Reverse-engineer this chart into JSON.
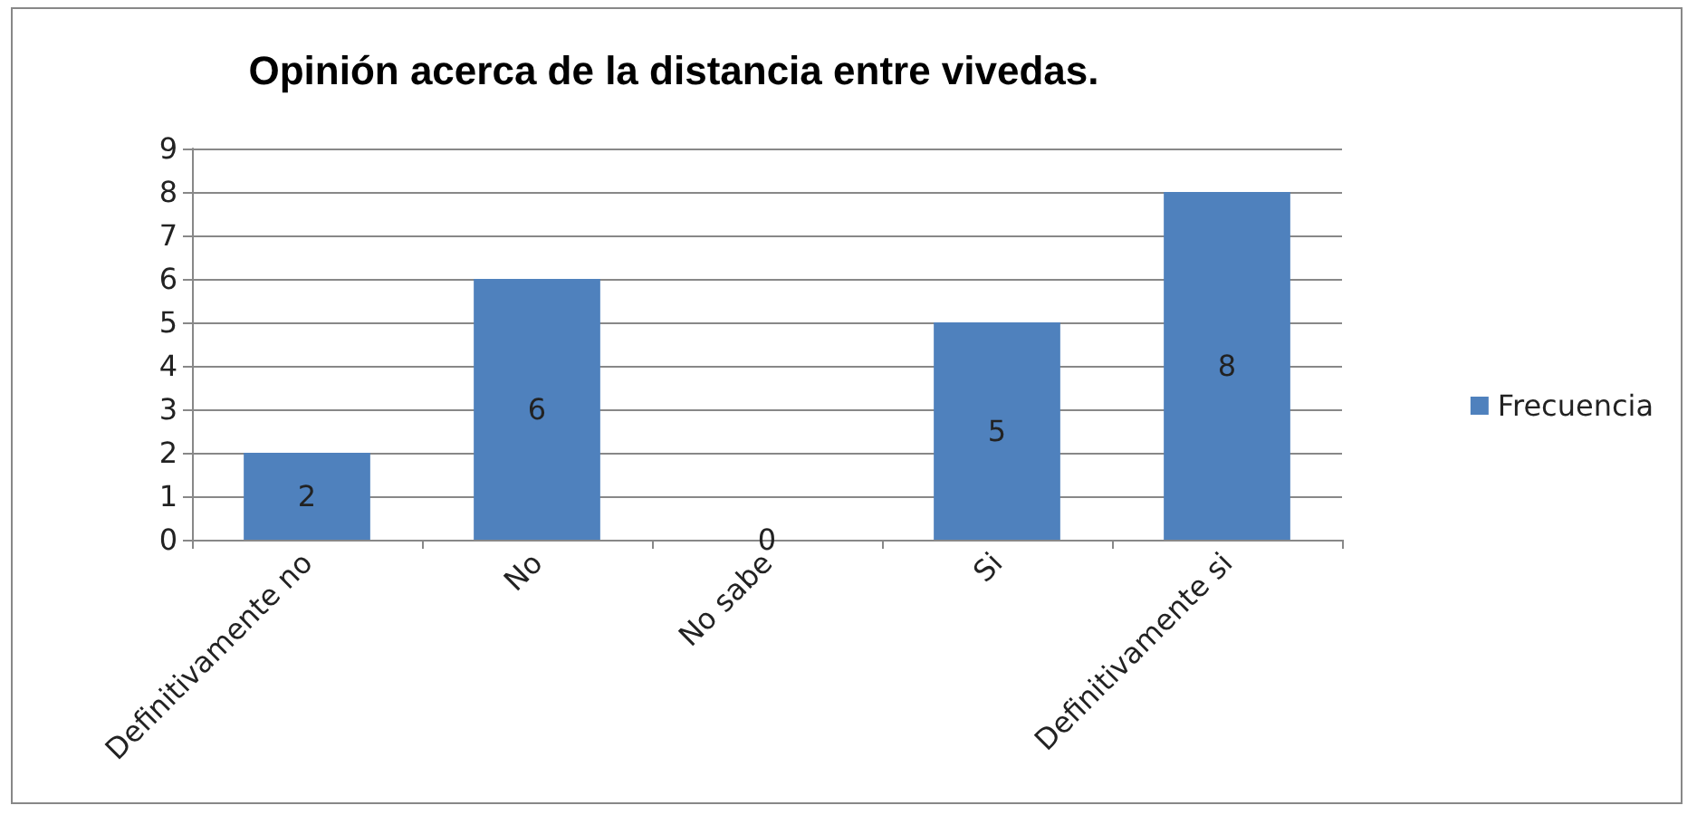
{
  "chart_data": {
    "type": "bar",
    "title": "Opinión acerca de la distancia entre vivedas.",
    "categories": [
      "Definitivamente no",
      "No",
      "No sabe",
      "Si",
      "Definitivamente si"
    ],
    "series": [
      {
        "name": "Frecuencia",
        "color": "#4f81bd",
        "values": [
          2,
          6,
          0,
          5,
          8
        ]
      }
    ],
    "ylim": [
      0,
      9
    ],
    "yticks": [
      0,
      1,
      2,
      3,
      4,
      5,
      6,
      7,
      8,
      9
    ],
    "grid": "y",
    "legend": "right",
    "data_labels": true
  }
}
